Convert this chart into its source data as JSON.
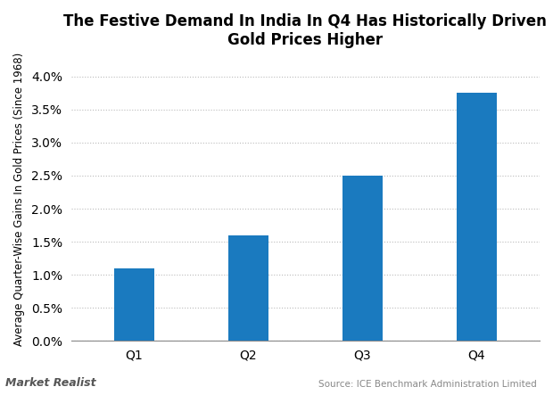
{
  "title": "The Festive Demand In India In Q4 Has Historically Driven\nGold Prices Higher",
  "categories": [
    "Q1",
    "Q2",
    "Q3",
    "Q4"
  ],
  "values": [
    0.011,
    0.016,
    0.025,
    0.0375
  ],
  "bar_color": "#1a7abf",
  "ylabel": "Average Quarter-Wise Gains In Gold Prices (Since 1968)",
  "ylim": [
    0,
    0.043
  ],
  "yticks": [
    0.0,
    0.005,
    0.01,
    0.015,
    0.02,
    0.025,
    0.03,
    0.035,
    0.04
  ],
  "source_text": "Source: ICE Benchmark Administration Limited",
  "watermark": "Market Realist",
  "background_color": "#ffffff",
  "grid_color": "#bbbbbb",
  "title_fontsize": 12,
  "ylabel_fontsize": 8.5,
  "tick_fontsize": 10,
  "bar_width": 0.35
}
